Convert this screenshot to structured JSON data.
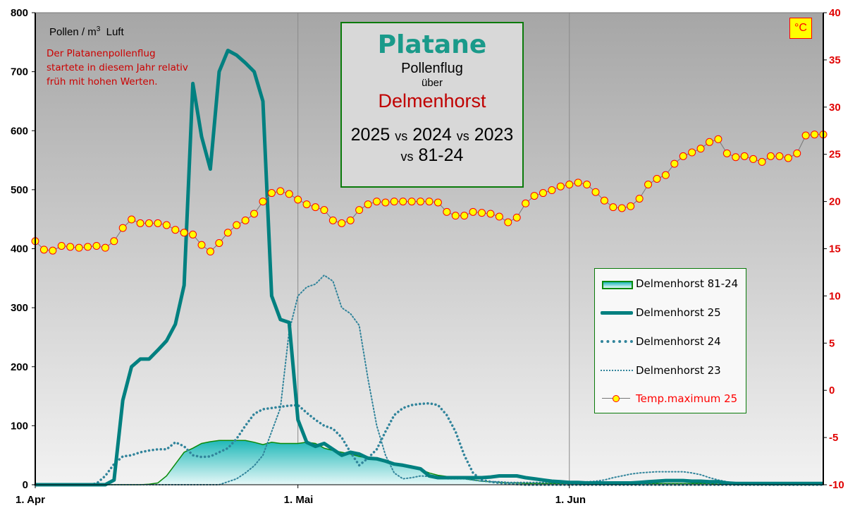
{
  "title": {
    "species": "Platane",
    "line2": "Pollenflug",
    "line3": "über",
    "city": "Delmenhorst",
    "years_a": "2025",
    "vs1": "vs",
    "years_b": "2024",
    "vs2": "vs",
    "years_c": "2023",
    "vs3": "vs",
    "years_d": "81-24"
  },
  "unit_label": "Pollen / m",
  "unit_sup": "3",
  "unit_suffix": "Luft",
  "annotation": [
    "Der Platanenpollenflug",
    "startete in diesem Jahr relativ",
    "früh mit hohen Werten."
  ],
  "temp_unit_badge": "°C",
  "colors": {
    "teal": "#008080",
    "dotted": "#31849b",
    "temp_fill": "#ffff00",
    "temp_stroke": "#ff0000",
    "area_stroke": "#0a8a0a",
    "annotation": "#cc0000"
  },
  "chart_data": {
    "type": "line",
    "x_unit": "day since 1 Apr",
    "x_range": [
      0,
      90
    ],
    "x_ticks": [
      {
        "day": 0,
        "label": "1. Apr"
      },
      {
        "day": 30,
        "label": "1. Mai"
      },
      {
        "day": 61,
        "label": "1. Jun"
      }
    ],
    "ylim_left": [
      0,
      800
    ],
    "y_ticks_left": [
      "0",
      "100",
      "200",
      "300",
      "400",
      "500",
      "600",
      "700",
      "800"
    ],
    "ylim_right": [
      -10,
      40
    ],
    "y_ticks_right": [
      "-10",
      "-5",
      "0",
      "5",
      "10",
      "15",
      "20",
      "25",
      "30",
      "35",
      "40"
    ],
    "legend_position": "right-middle",
    "series": [
      {
        "name": "Delmenhorst 81-24",
        "style": "area",
        "axis": "left",
        "values": [
          0,
          0,
          0,
          0,
          0,
          0,
          0,
          0,
          0,
          0,
          0,
          0,
          0,
          1,
          3,
          15,
          35,
          55,
          62,
          70,
          73,
          75,
          75,
          75,
          75,
          72,
          68,
          72,
          70,
          70,
          70,
          72,
          70,
          62,
          58,
          55,
          52,
          48,
          45,
          42,
          38,
          36,
          34,
          32,
          26,
          20,
          16,
          14,
          12,
          10,
          8,
          6,
          5,
          4,
          3,
          3,
          2,
          2,
          2,
          2,
          2,
          2,
          2,
          2,
          2,
          2,
          2,
          2,
          2,
          2,
          2,
          2,
          2,
          2,
          2,
          2,
          2,
          2,
          1,
          1,
          1,
          1,
          1,
          1,
          0,
          0,
          0,
          0,
          0,
          0,
          0
        ]
      },
      {
        "name": "Delmenhorst 25",
        "style": "thick",
        "axis": "left",
        "values": [
          0,
          0,
          0,
          0,
          0,
          0,
          0,
          0,
          0,
          8,
          143,
          200,
          213,
          213,
          228,
          244,
          272,
          338,
          680,
          590,
          535,
          700,
          736,
          728,
          715,
          700,
          650,
          320,
          280,
          275,
          110,
          72,
          65,
          70,
          60,
          50,
          55,
          52,
          45,
          44,
          40,
          35,
          33,
          30,
          27,
          15,
          12,
          12,
          12,
          12,
          12,
          12,
          13,
          15,
          15,
          15,
          12,
          10,
          8,
          6,
          5,
          4,
          4,
          3,
          3,
          3,
          3,
          3,
          3,
          4,
          5,
          6,
          7,
          7,
          7,
          6,
          6,
          5,
          5,
          3,
          2,
          2,
          2,
          2,
          2,
          2,
          2,
          2,
          2,
          2,
          2
        ]
      },
      {
        "name": "Delmenhorst 24",
        "style": "dotted",
        "axis": "left",
        "values": [
          0,
          0,
          0,
          0,
          0,
          0,
          0,
          2,
          15,
          35,
          48,
          50,
          55,
          58,
          60,
          60,
          72,
          65,
          50,
          47,
          48,
          55,
          62,
          78,
          100,
          120,
          128,
          130,
          132,
          134,
          135,
          122,
          110,
          100,
          95,
          80,
          55,
          33,
          45,
          60,
          90,
          118,
          130,
          135,
          137,
          138,
          135,
          118,
          90,
          50,
          20,
          8,
          5,
          3,
          2,
          1,
          0,
          0,
          0,
          0,
          0,
          0,
          0,
          0,
          0,
          0,
          0,
          0,
          0,
          0,
          0,
          0,
          0,
          0,
          0,
          0,
          0,
          0,
          0,
          0,
          0,
          0,
          0,
          0,
          0,
          0,
          0,
          0,
          0,
          0,
          0
        ]
      },
      {
        "name": "Delmenhorst 23",
        "style": "fine-dotted",
        "axis": "left",
        "values": [
          0,
          0,
          0,
          0,
          0,
          0,
          0,
          0,
          0,
          0,
          0,
          0,
          0,
          0,
          0,
          0,
          0,
          0,
          0,
          0,
          0,
          0,
          5,
          10,
          20,
          32,
          50,
          90,
          130,
          260,
          320,
          335,
          340,
          355,
          345,
          300,
          290,
          270,
          180,
          100,
          50,
          20,
          10,
          12,
          15,
          14,
          12,
          10,
          10,
          10,
          8,
          6,
          5,
          5,
          4,
          4,
          4,
          4,
          4,
          4,
          4,
          4,
          4,
          5,
          6,
          8,
          12,
          15,
          18,
          20,
          21,
          22,
          22,
          22,
          22,
          20,
          17,
          12,
          8,
          5,
          3,
          2,
          1,
          0,
          0,
          0,
          0,
          0,
          0,
          0,
          0
        ]
      },
      {
        "name": "Temp.maximum 25",
        "style": "marker",
        "axis": "right",
        "values": [
          15.8,
          14.9,
          14.8,
          15.3,
          15.2,
          15.1,
          15.2,
          15.3,
          15.1,
          15.8,
          17.2,
          18.1,
          17.7,
          17.7,
          17.7,
          17.5,
          17.0,
          16.7,
          16.5,
          15.4,
          14.7,
          15.6,
          16.7,
          17.5,
          18.0,
          18.7,
          20.0,
          20.9,
          21.1,
          20.8,
          20.2,
          19.7,
          19.4,
          19.1,
          18.0,
          17.7,
          18.0,
          19.1,
          19.7,
          20.0,
          19.9,
          20.0,
          20.0,
          20.0,
          20.0,
          20.0,
          19.9,
          18.9,
          18.5,
          18.5,
          18.9,
          18.8,
          18.7,
          18.4,
          17.8,
          18.3,
          19.8,
          20.6,
          20.9,
          21.2,
          21.6,
          21.8,
          22.0,
          21.8,
          21.0,
          20.1,
          19.4,
          19.3,
          19.5,
          20.3,
          21.8,
          22.4,
          22.8,
          24.0,
          24.8,
          25.2,
          25.6,
          26.3,
          26.6,
          25.1,
          24.7,
          24.8,
          24.5,
          24.2,
          24.8,
          24.8,
          24.6,
          25.1,
          27.0,
          27.1,
          27.1
        ]
      }
    ]
  }
}
